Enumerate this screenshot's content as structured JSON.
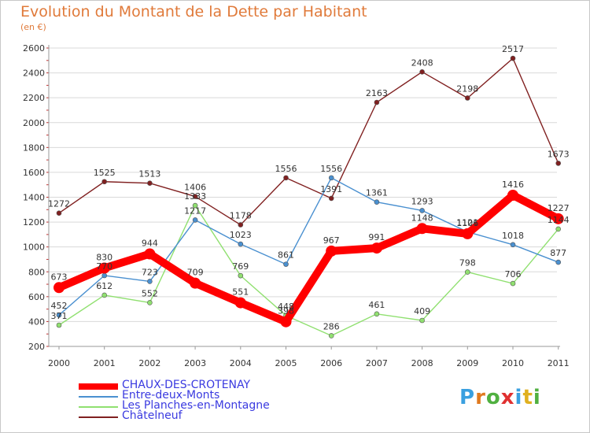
{
  "chart_data": {
    "type": "line",
    "title": "Evolution du Montant de la Dette par Habitant",
    "subtitle": "(en €)",
    "x": [
      "2000",
      "2001",
      "2002",
      "2003",
      "2004",
      "2005",
      "2006",
      "2007",
      "2008",
      "2009",
      "2010",
      "2011"
    ],
    "ylim": [
      200,
      2600
    ],
    "yticks": [
      200,
      400,
      600,
      800,
      1000,
      1200,
      1400,
      1600,
      1800,
      2000,
      2200,
      2400,
      2600
    ],
    "grid": "horizontal",
    "legend": "bottom-left",
    "series": [
      {
        "name": "CHAUX-DES-CROTENAY",
        "color": "#ff0000",
        "values": [
          673,
          830,
          944,
          709,
          551,
          398,
          967,
          991,
          1148,
          1106,
          1416,
          1227
        ]
      },
      {
        "name": "Entre-deux-Monts",
        "color": "#4a90d0",
        "values": [
          452,
          770,
          723,
          1217,
          1023,
          861,
          1556,
          1361,
          1293,
          1121,
          1018,
          877
        ]
      },
      {
        "name": "Les Planches-en-Montagne",
        "color": "#90e070",
        "values": [
          371,
          612,
          552,
          1333,
          769,
          448,
          286,
          461,
          409,
          798,
          706,
          1144
        ]
      },
      {
        "name": "Châtelneuf",
        "color": "#802020",
        "values": [
          1272,
          1525,
          1513,
          1406,
          1178,
          1556,
          1391,
          2163,
          2408,
          2198,
          2517,
          1673
        ]
      }
    ]
  },
  "logo": {
    "letters": [
      "P",
      "r",
      "o",
      "x",
      "i",
      "t",
      "i"
    ],
    "colors": [
      "#3aa0e0",
      "#e07a20",
      "#50b040",
      "#e03030",
      "#3aa0e0",
      "#e0b020",
      "#50b040"
    ]
  }
}
